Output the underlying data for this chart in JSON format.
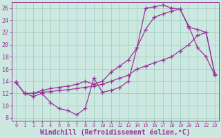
{
  "background_color": "#cce8e0",
  "plot_bg_color": "#cce8e0",
  "line_color": "#993399",
  "grid_color": "#99ccbb",
  "xlabel": "Windchill (Refroidissement éolien,°C)",
  "xlabel_fontsize": 7,
  "tick_fontsize": 6,
  "xlim": [
    -0.5,
    23.5
  ],
  "ylim": [
    7.5,
    27.0
  ],
  "yticks": [
    8,
    10,
    12,
    14,
    16,
    18,
    20,
    22,
    24,
    26
  ],
  "xticks": [
    0,
    1,
    2,
    3,
    4,
    5,
    6,
    7,
    8,
    9,
    10,
    11,
    12,
    13,
    14,
    15,
    16,
    17,
    18,
    19,
    20,
    21,
    22,
    23
  ],
  "line1_x": [
    0,
    1,
    2,
    3,
    4,
    5,
    6,
    7,
    8,
    9,
    10,
    11,
    12,
    13,
    14,
    15,
    16,
    17,
    18,
    19,
    20,
    21,
    22,
    23
  ],
  "line1_y": [
    13.8,
    12.0,
    11.5,
    12.0,
    10.5,
    9.5,
    9.2,
    8.5,
    9.5,
    14.5,
    12.2,
    12.5,
    13.0,
    14.0,
    19.5,
    26.0,
    26.2,
    26.5,
    26.0,
    25.8,
    23.0,
    19.5,
    18.0,
    15.0
  ],
  "line2_x": [
    0,
    1,
    2,
    3,
    4,
    5,
    6,
    7,
    8,
    9,
    10,
    11,
    12,
    13,
    14,
    15,
    16,
    17,
    18,
    19,
    20,
    21,
    22,
    23
  ],
  "line2_y": [
    13.8,
    12.0,
    12.0,
    12.2,
    12.3,
    12.5,
    12.6,
    12.8,
    13.0,
    13.2,
    13.5,
    14.0,
    14.5,
    15.0,
    16.0,
    16.5,
    17.0,
    17.5,
    18.0,
    19.0,
    20.0,
    21.5,
    22.0,
    15.2
  ],
  "line3_x": [
    0,
    1,
    2,
    3,
    4,
    5,
    6,
    7,
    8,
    9,
    10,
    11,
    12,
    13,
    14,
    15,
    16,
    17,
    18,
    19,
    20,
    21,
    22,
    23
  ],
  "line3_y": [
    13.8,
    12.0,
    12.0,
    12.5,
    12.8,
    13.0,
    13.2,
    13.5,
    14.0,
    13.5,
    14.0,
    15.5,
    16.5,
    17.5,
    19.5,
    22.5,
    24.5,
    25.0,
    25.5,
    25.8,
    22.8,
    22.5,
    22.0,
    15.2
  ]
}
